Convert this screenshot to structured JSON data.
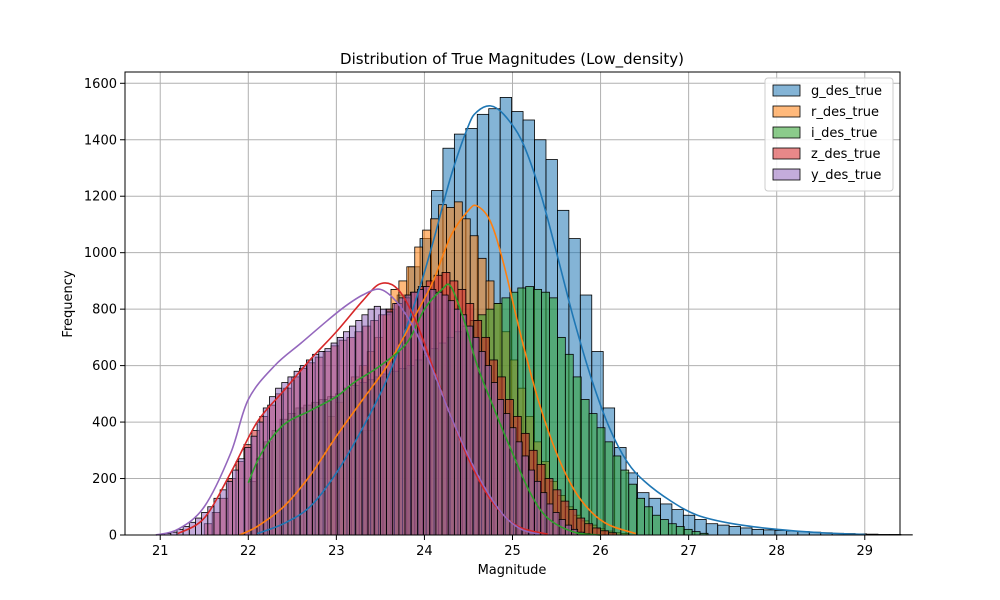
{
  "chart_data": {
    "type": "histogram",
    "title": "Distribution of True Magnitudes (Low_density)",
    "xlabel": "Magnitude",
    "ylabel": "Frequency",
    "xlim": [
      20.6,
      29.4
    ],
    "ylim": [
      0,
      1640
    ],
    "xticks": [
      21,
      22,
      23,
      24,
      25,
      26,
      27,
      28,
      29
    ],
    "yticks": [
      0,
      200,
      400,
      600,
      800,
      1000,
      1200,
      1400,
      1600
    ],
    "grid": true,
    "legend_position": "top-right",
    "series": [
      {
        "name": "g_des_true",
        "color": "#1f77b4",
        "bin_start": 23.3,
        "bin_width": 0.13,
        "counts": [
          370,
          560,
          800,
          850,
          950,
          1050,
          1220,
          1370,
          1420,
          1440,
          1490,
          1510,
          1550,
          1500,
          1470,
          1400,
          1330,
          1150,
          1050,
          850,
          650,
          450,
          310,
          220,
          150,
          130,
          110,
          90,
          70,
          55,
          40,
          35,
          30,
          25,
          20,
          18,
          16,
          14,
          12,
          10,
          8,
          6,
          5,
          4,
          3,
          2,
          2,
          1
        ],
        "kde": [
          [
            22.1,
            5
          ],
          [
            22.4,
            40
          ],
          [
            22.7,
            100
          ],
          [
            23.0,
            220
          ],
          [
            23.3,
            380
          ],
          [
            23.6,
            570
          ],
          [
            23.9,
            830
          ],
          [
            24.1,
            1040
          ],
          [
            24.3,
            1270
          ],
          [
            24.5,
            1450
          ],
          [
            24.6,
            1500
          ],
          [
            24.75,
            1520
          ],
          [
            24.9,
            1490
          ],
          [
            25.1,
            1400
          ],
          [
            25.3,
            1230
          ],
          [
            25.5,
            1000
          ],
          [
            25.7,
            760
          ],
          [
            25.9,
            550
          ],
          [
            26.1,
            380
          ],
          [
            26.3,
            260
          ],
          [
            26.5,
            190
          ],
          [
            26.8,
            120
          ],
          [
            27.1,
            70
          ],
          [
            27.5,
            40
          ],
          [
            28.0,
            20
          ],
          [
            28.5,
            8
          ],
          [
            29.0,
            2
          ]
        ]
      },
      {
        "name": "r_des_true",
        "color": "#ff7f0e",
        "bin_start": 22.9,
        "bin_width": 0.09,
        "counts": [
          420,
          470,
          520,
          560,
          600,
          650,
          700,
          780,
          870,
          900,
          950,
          1020,
          1080,
          1120,
          1170,
          1160,
          1180,
          1120,
          1060,
          980,
          900,
          820,
          720,
          620,
          520,
          420,
          330,
          260,
          190,
          140,
          100,
          70,
          50,
          35,
          22,
          14,
          8,
          5
        ],
        "kde": [
          [
            21.9,
            0
          ],
          [
            22.1,
            30
          ],
          [
            22.4,
            100
          ],
          [
            22.7,
            210
          ],
          [
            23.0,
            350
          ],
          [
            23.3,
            480
          ],
          [
            23.6,
            610
          ],
          [
            23.9,
            780
          ],
          [
            24.1,
            900
          ],
          [
            24.3,
            1060
          ],
          [
            24.5,
            1150
          ],
          [
            24.6,
            1165
          ],
          [
            24.75,
            1110
          ],
          [
            24.9,
            960
          ],
          [
            25.1,
            700
          ],
          [
            25.3,
            470
          ],
          [
            25.5,
            290
          ],
          [
            25.7,
            160
          ],
          [
            25.9,
            80
          ],
          [
            26.1,
            35
          ],
          [
            26.4,
            5
          ]
        ]
      },
      {
        "name": "i_des_true",
        "color": "#2ca02c",
        "bin_start": 22.0,
        "bin_width": 0.09,
        "counts": [
          190,
          270,
          330,
          370,
          410,
          430,
          450,
          460,
          470,
          480,
          490,
          500,
          520,
          530,
          540,
          550,
          560,
          570,
          580,
          590,
          600,
          620,
          640,
          660,
          680,
          700,
          720,
          740,
          760,
          780,
          800,
          820,
          840,
          860,
          875,
          880,
          870,
          860,
          840,
          700,
          640,
          560,
          480,
          430,
          380,
          330,
          280,
          230,
          180,
          130,
          100,
          70,
          55,
          40,
          30,
          20,
          12,
          6
        ],
        "kde": [
          [
            22.0,
            185
          ],
          [
            22.15,
            290
          ],
          [
            22.4,
            390
          ],
          [
            22.7,
            440
          ],
          [
            23.0,
            490
          ],
          [
            23.2,
            540
          ],
          [
            23.5,
            600
          ],
          [
            23.8,
            680
          ],
          [
            24.0,
            800
          ],
          [
            24.2,
            870
          ],
          [
            24.3,
            880
          ],
          [
            24.45,
            760
          ],
          [
            24.6,
            600
          ],
          [
            24.8,
            440
          ],
          [
            25.0,
            290
          ],
          [
            25.2,
            150
          ],
          [
            25.4,
            60
          ],
          [
            25.7,
            10
          ],
          [
            26.0,
            0
          ]
        ]
      },
      {
        "name": "z_des_true",
        "color": "#d62728",
        "bin_start": 21.5,
        "bin_width": 0.09,
        "counts": [
          40,
          80,
          130,
          200,
          260,
          320,
          370,
          420,
          460,
          500,
          520,
          560,
          590,
          610,
          630,
          650,
          670,
          690,
          700,
          720,
          740,
          760,
          780,
          800,
          820,
          840,
          860,
          880,
          900,
          920,
          930,
          900,
          870,
          820,
          760,
          700,
          620,
          560,
          480,
          420,
          360,
          300,
          250,
          200,
          160,
          120,
          90,
          60,
          40,
          25,
          15,
          8
        ],
        "kde": [
          [
            21.2,
            5
          ],
          [
            21.5,
            60
          ],
          [
            21.8,
            220
          ],
          [
            22.1,
            400
          ],
          [
            22.4,
            510
          ],
          [
            22.7,
            620
          ],
          [
            23.0,
            720
          ],
          [
            23.3,
            830
          ],
          [
            23.5,
            890
          ],
          [
            23.7,
            870
          ],
          [
            23.9,
            760
          ],
          [
            24.1,
            590
          ],
          [
            24.3,
            420
          ],
          [
            24.5,
            270
          ],
          [
            24.7,
            150
          ],
          [
            24.9,
            70
          ],
          [
            25.1,
            25
          ],
          [
            25.4,
            3
          ]
        ]
      },
      {
        "name": "y_des_true",
        "color": "#9467bd",
        "bin_start": 21.05,
        "bin_width": 0.07,
        "counts": [
          5,
          10,
          20,
          30,
          45,
          60,
          80,
          100,
          130,
          160,
          190,
          230,
          270,
          310,
          350,
          400,
          450,
          490,
          520,
          540,
          560,
          580,
          600,
          620,
          640,
          650,
          660,
          680,
          700,
          720,
          740,
          760,
          780,
          800,
          810,
          800,
          790,
          820,
          840,
          850,
          860,
          870,
          880,
          870,
          860,
          850,
          830,
          800,
          780,
          740,
          700,
          650,
          600,
          540,
          480,
          430,
          380,
          330,
          280,
          230,
          190,
          150,
          110,
          80,
          55,
          35,
          20,
          10,
          5
        ],
        "kde": [
          [
            20.95,
            0
          ],
          [
            21.2,
            20
          ],
          [
            21.5,
            100
          ],
          [
            21.8,
            290
          ],
          [
            22.0,
            480
          ],
          [
            22.3,
            600
          ],
          [
            22.6,
            680
          ],
          [
            22.9,
            760
          ],
          [
            23.1,
            810
          ],
          [
            23.3,
            850
          ],
          [
            23.5,
            870
          ],
          [
            23.7,
            820
          ],
          [
            23.9,
            720
          ],
          [
            24.1,
            580
          ],
          [
            24.3,
            420
          ],
          [
            24.5,
            280
          ],
          [
            24.7,
            160
          ],
          [
            24.9,
            70
          ],
          [
            25.1,
            20
          ],
          [
            25.3,
            3
          ]
        ]
      }
    ]
  }
}
